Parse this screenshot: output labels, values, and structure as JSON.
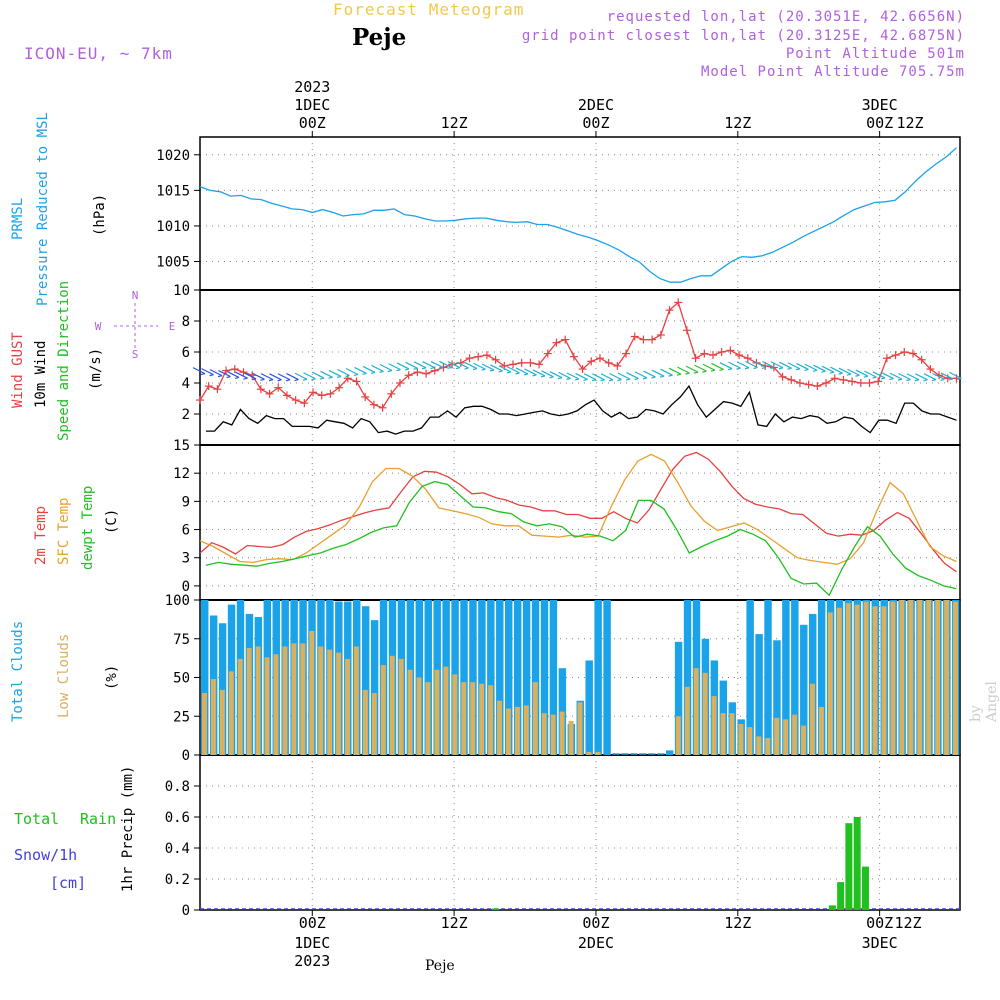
{
  "header": {
    "chart_title": "Forecast Meteogram",
    "location": "Peje",
    "model": "ICON-EU, ~ 7km",
    "requested": "requested lon,lat (20.3051E, 42.6656N)",
    "grid_point": "grid point closest lon,lat (20.3125E, 42.6875N)",
    "point_altitude": "Point Altitude 501m",
    "model_altitude": "Model Point Altitude 705.75m",
    "bottom_location": "Peje",
    "credit": "by Angel"
  },
  "time_axis": {
    "top_year": "2023",
    "day_labels": [
      "1DEC",
      "2DEC",
      "3DEC"
    ],
    "hour_labels": [
      "00Z",
      "12Z",
      "00Z",
      "12Z",
      "00Z",
      "12Z"
    ]
  },
  "panel_labels": {
    "pressure": [
      "PRMSL",
      "Pressure Reduced to MSL",
      "(hPa)"
    ],
    "wind": [
      "Wind GUST",
      "10m Wind",
      "Speed and Direction",
      "(m/s)"
    ],
    "compass": [
      "N",
      "W",
      "E",
      "S"
    ],
    "temp": [
      "2m Temp",
      "SFC Temp",
      "dewpt Temp",
      "(C)"
    ],
    "clouds": [
      "Total Clouds",
      "Low Clouds",
      "(%)"
    ],
    "precip": [
      "Total",
      "Rain",
      "Snow/1h",
      "[cm]",
      "1hr Precip (mm)"
    ]
  },
  "colors": {
    "pressure": "#1aa3e8",
    "gust": "#e84040",
    "wind": "#000000",
    "temp2m": "#e84040",
    "sfc": "#e8a030",
    "dewpt": "#20c020",
    "total_clouds": "#1aa3e8",
    "low_clouds": "#d9b060",
    "rain": "#20c020",
    "snow": "#4040e0",
    "purple": "#b060e0"
  },
  "chart_data": [
    {
      "type": "line",
      "name": "pressure",
      "yticks": [
        1005,
        1010,
        1015,
        1020
      ],
      "ylim": [
        1001,
        1022.5
      ],
      "values": [
        1015.5,
        1015,
        1014.8,
        1014.2,
        1014.3,
        1013.8,
        1013.7,
        1013.2,
        1012.8,
        1012.4,
        1012.3,
        1011.9,
        1012.3,
        1011.9,
        1011.4,
        1011.6,
        1011.7,
        1012.2,
        1012.2,
        1012.4,
        1011.6,
        1011.4,
        1011.0,
        1010.7,
        1010.7,
        1010.8,
        1011.0,
        1011.1,
        1011.1,
        1010.8,
        1010.6,
        1010.5,
        1010.6,
        1010.2,
        1010.2,
        1009.8,
        1009.3,
        1008.8,
        1008.4,
        1007.9,
        1007.3,
        1006.6,
        1005.7,
        1004.9,
        1003.6,
        1002.6,
        1002.1,
        1002.1,
        1002.6,
        1003.0,
        1003.0,
        1004.0,
        1005.0,
        1005.7,
        1005.6,
        1005.8,
        1006.3,
        1007.0,
        1007.7,
        1008.5,
        1009.2,
        1009.9,
        1010.6,
        1011.5,
        1012.3,
        1012.8,
        1013.3,
        1013.4,
        1013.6,
        1014.8,
        1016.3,
        1017.6,
        1018.7,
        1019.7,
        1021.0
      ]
    },
    {
      "type": "line",
      "name": "wind",
      "yticks": [
        2,
        4,
        6,
        8,
        10
      ],
      "ylim": [
        0,
        10
      ],
      "gust": [
        2.9,
        3.8,
        3.6,
        4.8,
        4.9,
        4.7,
        4.5,
        3.6,
        3.3,
        3.7,
        3.2,
        2.9,
        2.7,
        3.4,
        3.2,
        3.3,
        3.7,
        4.3,
        4.1,
        3.1,
        2.6,
        2.4,
        3.3,
        4.0,
        4.5,
        4.7,
        4.6,
        4.8,
        5.0,
        5.2,
        5.3,
        5.6,
        5.7,
        5.8,
        5.5,
        5.1,
        5.2,
        5.3,
        5.3,
        5.2,
        5.9,
        6.6,
        6.8,
        5.7,
        4.9,
        5.4,
        5.6,
        5.3,
        5.1,
        5.9,
        7.0,
        6.8,
        6.8,
        7.1,
        8.7,
        9.2,
        7.4,
        5.6,
        5.9,
        5.8,
        6.0,
        6.1,
        5.8,
        5.6,
        5.3,
        5.1,
        5.0,
        4.4,
        4.2,
        4.0,
        3.9,
        3.8,
        4.0,
        4.3,
        4.2,
        4.1,
        4.0,
        4.0,
        4.1,
        5.6,
        5.8,
        6.0,
        5.9,
        5.5,
        4.9,
        4.5,
        4.3,
        4.3
      ],
      "wind": [
        0.9,
        0.9,
        1.5,
        1.3,
        2.3,
        1.7,
        1.4,
        1.9,
        1.7,
        1.7,
        1.2,
        1.2,
        1.2,
        1.1,
        1.6,
        1.5,
        1.4,
        1.1,
        1.7,
        1.5,
        0.8,
        0.9,
        0.7,
        0.9,
        0.9,
        1.1,
        1.8,
        1.8,
        2.2,
        1.8,
        2.4,
        2.5,
        2.5,
        2.3,
        2.0,
        2.0,
        1.9,
        2.0,
        2.1,
        2.2,
        2.0,
        1.9,
        2.0,
        2.2,
        2.6,
        2.9,
        2.2,
        1.8,
        2.1,
        1.7,
        1.8,
        2.3,
        2.2,
        2.0,
        2.6,
        3.1,
        3.8,
        2.6,
        1.8,
        2.3,
        2.8,
        2.7,
        2.5,
        3.4,
        1.3,
        1.2,
        2.0,
        1.5,
        1.8,
        1.7,
        1.9,
        1.8,
        1.4,
        1.5,
        1.8,
        1.7,
        1.2,
        0.8,
        1.6,
        1.6,
        1.4,
        2.7,
        2.7,
        2.2,
        2.0,
        2.0,
        1.8,
        1.6
      ]
    },
    {
      "type": "line",
      "name": "temperature",
      "yticks": [
        0,
        3,
        6,
        9,
        12,
        15
      ],
      "ylim": [
        -1.5,
        15
      ],
      "t2m": [
        3.5,
        4.6,
        4.1,
        3.4,
        4.3,
        4.2,
        4.1,
        4.4,
        5.2,
        5.8,
        6.1,
        6.5,
        7.0,
        7.4,
        7.8,
        8.1,
        8.3,
        10.0,
        11.6,
        12.2,
        12.1,
        11.6,
        10.8,
        9.8,
        9.9,
        9.4,
        9.1,
        8.6,
        8.4,
        8.0,
        8.0,
        7.6,
        7.6,
        7.2,
        7.2,
        7.9,
        7.2,
        6.7,
        8.1,
        10.3,
        12.4,
        13.8,
        14.2,
        13.5,
        12.2,
        10.6,
        9.3,
        8.7,
        8.4,
        8.2,
        7.7,
        7.6,
        6.6,
        5.6,
        5.3,
        5.5,
        5.4,
        5.9,
        7.0,
        7.8,
        7.2,
        5.6,
        3.9,
        2.4,
        1.5
      ],
      "sfc": [
        4.8,
        4.2,
        3.4,
        2.6,
        2.5,
        2.8,
        2.9,
        2.8,
        3.5,
        4.5,
        5.5,
        6.5,
        8.4,
        11.1,
        12.5,
        12.5,
        11.7,
        10.3,
        8.3,
        8.0,
        7.7,
        7.3,
        6.6,
        6.4,
        6.4,
        5.4,
        5.3,
        5.2,
        5.4,
        5.2,
        5.3,
        8.5,
        11.3,
        13.3,
        14.0,
        13.3,
        11.0,
        8.5,
        6.9,
        5.9,
        6.3,
        6.7,
        6.0,
        5.0,
        4.0,
        3.0,
        2.7,
        2.5,
        2.3,
        2.9,
        4.6,
        8.0,
        11.0,
        9.8,
        7.0,
        4.2,
        3.2,
        2.6
      ],
      "dewpt": [
        2.2,
        2.5,
        2.3,
        2.2,
        2.1,
        2.4,
        2.6,
        2.9,
        3.2,
        3.5,
        4.0,
        4.4,
        5.0,
        5.7,
        6.2,
        6.4,
        8.9,
        10.6,
        11.1,
        10.8,
        9.6,
        8.4,
        8.3,
        7.9,
        7.7,
        6.8,
        6.4,
        6.6,
        6.3,
        5.2,
        5.5,
        5.3,
        4.8,
        5.9,
        9.1,
        9.1,
        8.2,
        6.0,
        3.5,
        4.2,
        4.8,
        5.3,
        6.0,
        5.5,
        4.8,
        3.0,
        0.8,
        0.2,
        0.3,
        -1.0,
        1.8,
        4.2,
        6.3,
        5.3,
        3.4,
        1.9,
        1.1,
        0.6,
        0.0,
        -0.3
      ]
    },
    {
      "type": "bar",
      "name": "clouds",
      "yticks": [
        0,
        25,
        50,
        75,
        100
      ],
      "ylim": [
        0,
        100
      ],
      "total": [
        100,
        90,
        85,
        97,
        100,
        91,
        89,
        100,
        100,
        100,
        100,
        100,
        100,
        100,
        100,
        99,
        99,
        100,
        96,
        87,
        100,
        100,
        100,
        100,
        100,
        100,
        100,
        100,
        100,
        100,
        100,
        100,
        100,
        100,
        100,
        100,
        100,
        100,
        100,
        100,
        56,
        20,
        35,
        61,
        100,
        100,
        0,
        0,
        0,
        0,
        0,
        0,
        3,
        73,
        100,
        100,
        75,
        61,
        48,
        34,
        23,
        100,
        78,
        100,
        74,
        100,
        100,
        84,
        91,
        100,
        100,
        100,
        100,
        100,
        100,
        100,
        100,
        100,
        100,
        100,
        100,
        100,
        100,
        100,
        100
      ],
      "low": [
        40,
        49,
        42,
        54,
        62,
        69,
        70,
        63,
        65,
        70,
        72,
        72,
        80,
        70,
        68,
        66,
        62,
        70,
        42,
        40,
        58,
        64,
        62,
        55,
        50,
        47,
        55,
        57,
        52,
        47,
        47,
        46,
        45,
        35,
        30,
        31,
        32,
        47,
        27,
        26,
        28,
        22,
        34,
        2,
        2,
        0,
        0,
        0,
        0,
        0,
        0,
        0,
        0,
        25,
        44,
        56,
        53,
        38,
        27,
        27,
        20,
        18,
        12,
        11,
        24,
        23,
        26,
        19,
        46,
        31,
        92,
        95,
        98,
        97,
        99,
        96,
        96,
        99,
        100,
        100,
        100,
        100,
        100,
        100,
        99
      ]
    },
    {
      "type": "bar",
      "name": "precip",
      "yticks": [
        0,
        0.2,
        0.4,
        0.6,
        0.8
      ],
      "ylim": [
        0,
        1.0
      ],
      "bars": [
        {
          "t": 15.5,
          "v": 0.01
        },
        {
          "t": 44.0,
          "v": 0.03
        },
        {
          "t": 44.7,
          "v": 0.18
        },
        {
          "t": 45.4,
          "v": 0.56
        },
        {
          "t": 46.1,
          "v": 0.6
        },
        {
          "t": 46.8,
          "v": 0.28
        }
      ]
    }
  ]
}
